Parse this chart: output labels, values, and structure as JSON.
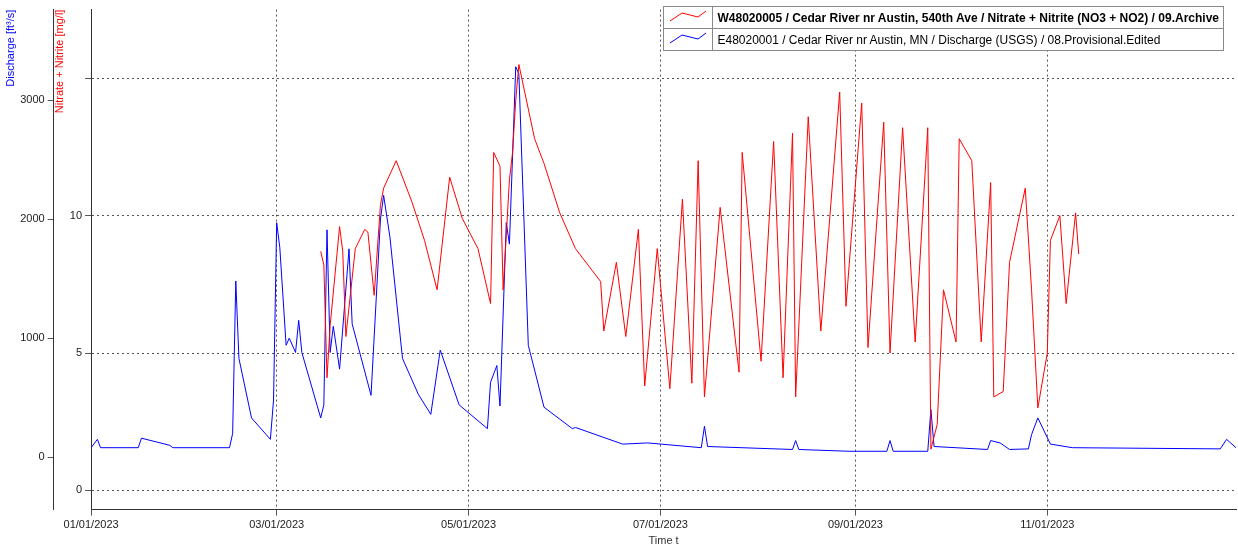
{
  "chart_data": {
    "type": "line",
    "xlabel": "Time t",
    "ylabel": "Nitrate + Nitrite [mg/l]",
    "y2label": "Discharge [ft³/s]",
    "xlim": [
      "2023-01-01",
      "2023-12-31"
    ],
    "xticks": [
      {
        "value": "2023-01-01",
        "label": "01/01/2023"
      },
      {
        "value": "2023-03-01",
        "label": "03/01/2023"
      },
      {
        "value": "2023-05-01",
        "label": "05/01/2023"
      },
      {
        "value": "2023-07-01",
        "label": "07/01/2023"
      },
      {
        "value": "2023-09-01",
        "label": "09/01/2023"
      },
      {
        "value": "2023-11-01",
        "label": "11/01/2023"
      }
    ],
    "ylim": [
      -0.7,
      17.5
    ],
    "yticks": [
      0,
      5,
      10,
      {
        "value": 15,
        "label": null
      }
    ],
    "y2lim": [
      -440,
      3760
    ],
    "y2ticks": [
      0,
      1000,
      2000,
      3000
    ],
    "grid": true,
    "legend": "top right",
    "line_style": "solid",
    "marker": "none",
    "series": [
      {
        "name": "W48020005 / Cedar River nr Austin, 540th Ave / Nitrate + Nitrite (NO3 + NO2) / 09.Archive",
        "color": "#ff0000",
        "x": [
          "2023-03-15",
          "2023-03-16",
          "2023-03-17",
          "2023-03-18",
          "2023-03-21",
          "2023-03-22",
          "2023-03-23",
          "2023-03-26",
          "2023-03-29",
          "2023-03-30",
          "2023-04-01",
          "2023-04-03",
          "2023-04-04",
          "2023-04-08",
          "2023-04-13",
          "2023-04-17",
          "2023-04-19",
          "2023-04-21",
          "2023-04-25",
          "2023-04-29",
          "2023-05-04",
          "2023-05-08",
          "2023-05-09",
          "2023-05-11",
          "2023-05-12",
          "2023-05-14",
          "2023-05-15",
          "2023-05-16",
          "2023-05-17",
          "2023-05-22",
          "2023-05-25",
          "2023-05-30",
          "2023-06-04",
          "2023-06-12",
          "2023-06-13",
          "2023-06-17",
          "2023-06-20",
          "2023-06-24",
          "2023-06-26",
          "2023-06-30",
          "2023-07-04",
          "2023-07-08",
          "2023-07-11",
          "2023-07-13",
          "2023-07-15",
          "2023-07-20",
          "2023-07-26",
          "2023-07-27",
          "2023-08-02",
          "2023-08-06",
          "2023-08-09",
          "2023-08-12",
          "2023-08-13",
          "2023-08-17",
          "2023-08-21",
          "2023-08-27",
          "2023-08-29",
          "2023-09-03",
          "2023-09-05",
          "2023-09-10",
          "2023-09-12",
          "2023-09-16",
          "2023-09-20",
          "2023-09-24",
          "2023-09-25",
          "2023-09-27",
          "2023-09-29",
          "2023-10-03",
          "2023-10-04",
          "2023-10-08",
          "2023-10-11",
          "2023-10-14",
          "2023-10-15",
          "2023-10-18",
          "2023-10-20",
          "2023-10-25",
          "2023-10-27",
          "2023-10-29",
          "2023-11-01",
          "2023-11-02",
          "2023-11-05",
          "2023-11-07",
          "2023-11-10",
          "2023-11-11"
        ],
        "values": [
          8.7,
          8.2,
          4.1,
          6.0,
          9.6,
          8.7,
          5.6,
          8.8,
          9.5,
          9.4,
          7.1,
          10.4,
          11.0,
          12.0,
          10.5,
          9.1,
          8.2,
          7.3,
          11.4,
          9.9,
          8.8,
          6.8,
          12.3,
          11.8,
          7.3,
          11.3,
          12.3,
          14.2,
          15.5,
          12.8,
          11.9,
          10.1,
          8.8,
          7.6,
          5.8,
          8.3,
          5.6,
          9.5,
          3.8,
          8.8,
          3.7,
          10.6,
          3.9,
          12.0,
          3.4,
          10.3,
          4.3,
          12.3,
          4.7,
          12.7,
          4.1,
          13.0,
          3.4,
          13.6,
          5.8,
          14.5,
          6.7,
          14.1,
          5.2,
          13.4,
          5.0,
          13.2,
          5.4,
          13.2,
          1.5,
          2.4,
          7.3,
          5.4,
          12.8,
          12.0,
          5.4,
          11.2,
          3.4,
          3.6,
          8.3,
          11.0,
          7.3,
          3.0,
          5.0,
          9.1,
          10.0,
          6.8,
          10.1,
          8.6
        ]
      },
      {
        "name": "E48020001 / Cedar River nr Austin, MN / Discharge (USGS) / 08.Provisional.Edited",
        "color": "#0000ff",
        "axis": "y2",
        "x": [
          "2023-01-01",
          "2023-01-03",
          "2023-01-04",
          "2023-01-16",
          "2023-01-17",
          "2023-01-26",
          "2023-01-27",
          "2023-02-14",
          "2023-02-15",
          "2023-02-16",
          "2023-02-17",
          "2023-02-21",
          "2023-02-27",
          "2023-02-28",
          "2023-03-01",
          "2023-03-02",
          "2023-03-04",
          "2023-03-05",
          "2023-03-07",
          "2023-03-08",
          "2023-03-09",
          "2023-03-15",
          "2023-03-16",
          "2023-03-17",
          "2023-03-18",
          "2023-03-19",
          "2023-03-21",
          "2023-03-24",
          "2023-03-25",
          "2023-03-31",
          "2023-04-03",
          "2023-04-04",
          "2023-04-06",
          "2023-04-10",
          "2023-04-15",
          "2023-04-19",
          "2023-04-22",
          "2023-04-28",
          "2023-05-07",
          "2023-05-08",
          "2023-05-10",
          "2023-05-11",
          "2023-05-13",
          "2023-05-14",
          "2023-05-16",
          "2023-05-17",
          "2023-05-20",
          "2023-05-25",
          "2023-06-03",
          "2023-06-04",
          "2023-06-19",
          "2023-06-27",
          "2023-07-14",
          "2023-07-15",
          "2023-07-16",
          "2023-08-12",
          "2023-08-13",
          "2023-08-14",
          "2023-08-30",
          "2023-09-11",
          "2023-09-12",
          "2023-09-13",
          "2023-09-24",
          "2023-09-25",
          "2023-09-26",
          "2023-10-13",
          "2023-10-14",
          "2023-10-17",
          "2023-10-20",
          "2023-10-26",
          "2023-10-27",
          "2023-10-29",
          "2023-11-02",
          "2023-11-09",
          "2023-12-26",
          "2023-12-28",
          "2023-12-31"
        ],
        "values": [
          80,
          150,
          80,
          80,
          160,
          100,
          80,
          80,
          200,
          1480,
          830,
          330,
          150,
          480,
          1970,
          1760,
          940,
          1000,
          880,
          1150,
          880,
          330,
          440,
          1910,
          880,
          1100,
          740,
          1750,
          1120,
          520,
          2000,
          2200,
          1850,
          830,
          530,
          360,
          900,
          440,
          240,
          630,
          770,
          430,
          1970,
          1790,
          3280,
          3220,
          940,
          420,
          240,
          250,
          110,
          120,
          80,
          260,
          90,
          65,
          140,
          65,
          50,
          50,
          140,
          50,
          50,
          400,
          90,
          65,
          140,
          120,
          65,
          70,
          190,
          330,
          110,
          80,
          70,
          150,
          80
        ]
      }
    ]
  }
}
